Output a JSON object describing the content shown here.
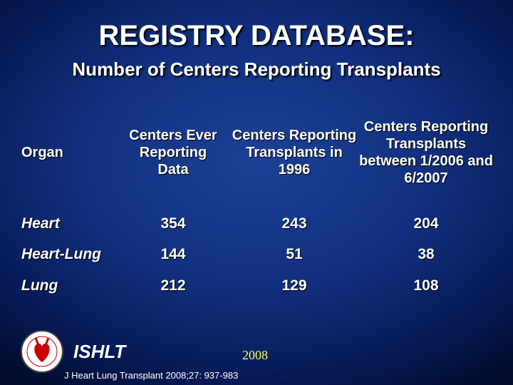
{
  "header": {
    "title": "REGISTRY DATABASE:",
    "subtitle": "Number of Centers Reporting Transplants"
  },
  "table": {
    "columns": [
      "Organ",
      "Centers Ever Reporting Data",
      "Centers Reporting Transplants in 1996",
      "Centers Reporting Transplants between 1/2006 and 6/2007"
    ],
    "rows": [
      [
        "Heart",
        354,
        243,
        204
      ],
      [
        "Heart-Lung",
        144,
        51,
        38
      ],
      [
        "Lung",
        212,
        129,
        108
      ]
    ]
  },
  "footer": {
    "logo_text": "ISHLT",
    "year": "2008",
    "citation": "J Heart Lung Transplant 2008;27: 937-983"
  }
}
